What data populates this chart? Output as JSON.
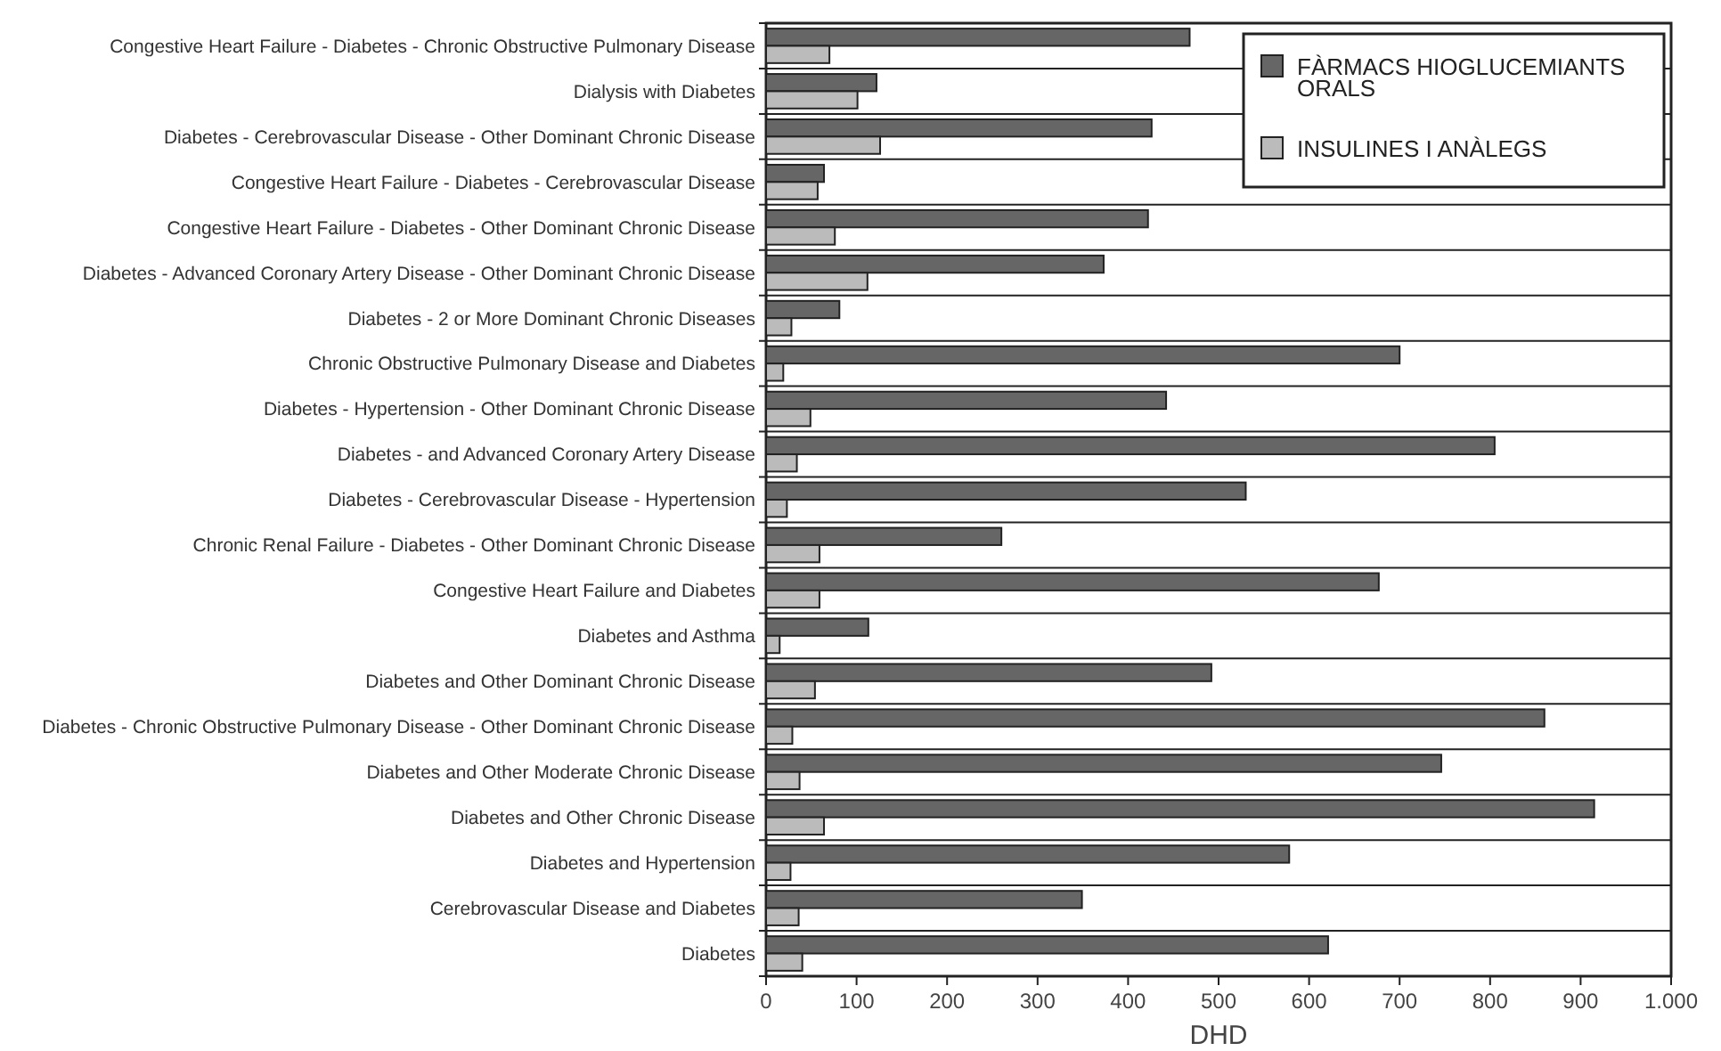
{
  "chart_data": {
    "type": "bar",
    "orientation": "horizontal",
    "xlabel": "DHD",
    "categories": [
      "Congestive Heart Failure - Diabetes - Chronic Obstructive Pulmonary Disease",
      "Dialysis with Diabetes",
      "Diabetes - Cerebrovascular Disease - Other Dominant Chronic Disease",
      "Congestive Heart Failure - Diabetes - Cerebrovascular Disease",
      "Congestive Heart Failure - Diabetes - Other Dominant Chronic Disease",
      "Diabetes - Advanced Coronary Artery Disease - Other Dominant Chronic Disease",
      "Diabetes - 2 or More Dominant Chronic Diseases",
      "Chronic Obstructive Pulmonary Disease and Diabetes",
      "Diabetes - Hypertension - Other Dominant Chronic Disease",
      "Diabetes - and Advanced Coronary Artery Disease",
      "Diabetes - Cerebrovascular Disease - Hypertension",
      "Chronic Renal Failure - Diabetes - Other Dominant Chronic Disease",
      "Congestive Heart Failure and Diabetes",
      "Diabetes and Asthma",
      "Diabetes and Other Dominant Chronic Disease",
      "Diabetes - Chronic Obstructive Pulmonary Disease - Other Dominant Chronic Disease",
      "Diabetes and Other Moderate Chronic Disease",
      "Diabetes and Other Chronic Disease",
      "Diabetes and Hypertension",
      "Cerebrovascular Disease and Diabetes",
      "Diabetes"
    ],
    "series": [
      {
        "name": "FÀRMACS HIOGLUCEMIANTS ORALS",
        "color": "#666666",
        "values": [
          468,
          122,
          426,
          64,
          422,
          373,
          81,
          700,
          442,
          805,
          530,
          260,
          677,
          113,
          492,
          860,
          746,
          915,
          578,
          349,
          621
        ]
      },
      {
        "name": "INSULINES I ANÀLEGS",
        "color": "#bbbbbc",
        "values": [
          70,
          101,
          126,
          57,
          76,
          112,
          28,
          19,
          49,
          34,
          23,
          59,
          59,
          15,
          54,
          29,
          37,
          64,
          27,
          36,
          40
        ]
      }
    ],
    "xlim": [
      0,
      1000
    ],
    "xticks": [
      0,
      100,
      200,
      300,
      400,
      500,
      600,
      700,
      800,
      900,
      {
        "value": 1000,
        "label": "1.000"
      }
    ],
    "grid": "y",
    "legend": "top right"
  }
}
